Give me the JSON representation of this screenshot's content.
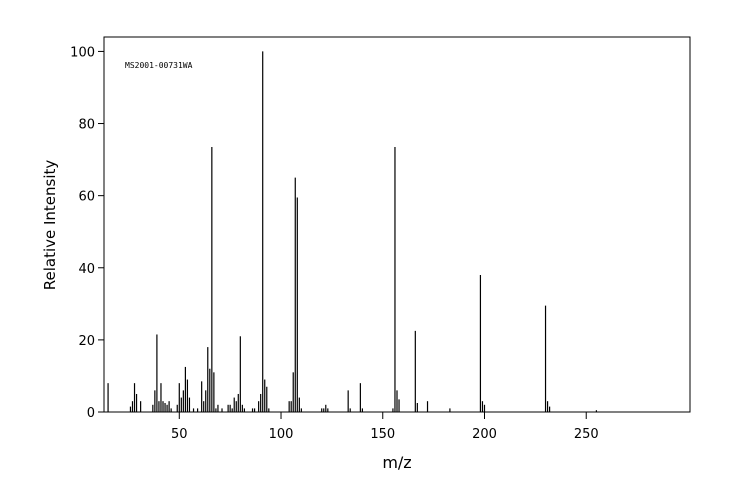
{
  "chart_data": {
    "type": "stem",
    "annotation": "MS2001-00731WA",
    "x_label": "m/z",
    "y_label": "Relative Intensity",
    "color": "#000000",
    "x": [
      15,
      26,
      27,
      28,
      29,
      31,
      37,
      38,
      39,
      40,
      41,
      42,
      43,
      44,
      45,
      46,
      49,
      50,
      51,
      52,
      53,
      54,
      55,
      57,
      59,
      61,
      62,
      63,
      64,
      65,
      66,
      67,
      68,
      69,
      71,
      74,
      75,
      76,
      77,
      78,
      79,
      80,
      81,
      82,
      86,
      87,
      89,
      90,
      91,
      92,
      93,
      94,
      104,
      105,
      106,
      107,
      108,
      109,
      110,
      120,
      121,
      122,
      123,
      133,
      134,
      139,
      140,
      155,
      156,
      157,
      158,
      166,
      167,
      172,
      183,
      198,
      199,
      200,
      230,
      231,
      232,
      255
    ],
    "values": [
      8,
      1.5,
      3,
      8,
      5,
      3,
      2,
      6,
      21.5,
      3,
      8,
      3,
      2.5,
      2,
      3,
      1,
      2,
      8,
      4,
      6,
      12.5,
      9,
      4,
      1,
      1,
      8.5,
      3,
      6,
      18,
      12,
      73.5,
      11,
      1,
      2,
      1,
      2,
      2,
      1,
      4,
      3,
      5,
      21,
      2,
      1,
      1,
      1,
      3,
      5,
      100,
      9,
      7,
      1,
      3,
      3,
      11,
      65,
      59.5,
      4,
      1,
      1,
      1,
      2,
      1,
      6,
      1,
      8,
      1,
      1,
      73.5,
      6,
      3.5,
      22.5,
      2.5,
      3,
      1,
      38,
      3,
      2,
      29.5,
      3,
      1.5,
      0.5
    ],
    "xlim": [
      13,
      301
    ],
    "xticks": [
      50,
      100,
      150,
      200,
      250
    ],
    "ylim": [
      0,
      104
    ],
    "yticks": [
      0,
      20,
      40,
      60,
      80,
      100
    ]
  }
}
